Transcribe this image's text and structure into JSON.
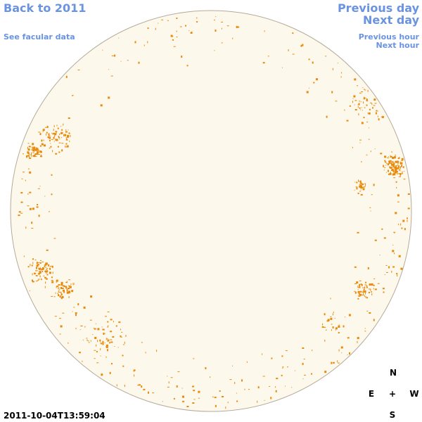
{
  "links": {
    "back": "Back to 2011",
    "facular": "See facular data",
    "previous_day": "Previous day",
    "next_day": "Next day",
    "previous_hour": "Previous hour",
    "next_hour": "Next hour"
  },
  "timestamp": "2011-10-04T13:59:04",
  "compass": {
    "north": "N",
    "east": "E",
    "center": "+",
    "west": "W",
    "south": "S"
  }
}
